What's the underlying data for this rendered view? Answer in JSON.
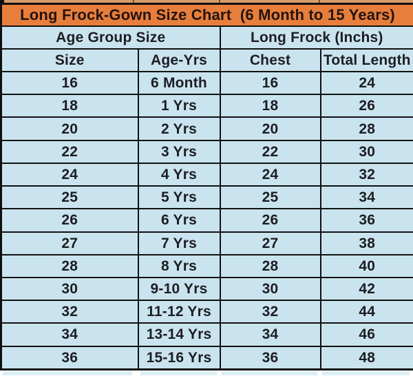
{
  "colors": {
    "header_orange": "#E77E3C",
    "cell_blue": "#CAE4EF",
    "border_dark": "#101010",
    "title_text": "#241411",
    "body_text": "#1D1D22",
    "top_strip_tan": "#D89B6C",
    "top_tick": "#7A5336",
    "bottom_strip_blue": "#DCEEF5"
  },
  "chart_data": {
    "type": "table",
    "title": "Long Frock-Gown Size Chart  (6 Month to 15 Years)",
    "column_groups": [
      {
        "label": "Age Group Size",
        "span": 2
      },
      {
        "label": "Long Frock (Inchs)",
        "span": 2
      }
    ],
    "columns": [
      "Size",
      "Age-Yrs",
      "Chest",
      "Total Length"
    ],
    "rows": [
      [
        "16",
        "6 Month",
        "16",
        "24"
      ],
      [
        "18",
        "1 Yrs",
        "18",
        "26"
      ],
      [
        "20",
        "2 Yrs",
        "20",
        "28"
      ],
      [
        "22",
        "3 Yrs",
        "22",
        "30"
      ],
      [
        "24",
        "4 Yrs",
        "24",
        "32"
      ],
      [
        "25",
        "5 Yrs",
        "25",
        "34"
      ],
      [
        "26",
        "6 Yrs",
        "26",
        "36"
      ],
      [
        "27",
        "7 Yrs",
        "27",
        "38"
      ],
      [
        "28",
        "8 Yrs",
        "28",
        "40"
      ],
      [
        "30",
        "9-10 Yrs",
        "30",
        "42"
      ],
      [
        "32",
        "11-12 Yrs",
        "32",
        "44"
      ],
      [
        "34",
        "13-14 Yrs",
        "34",
        "46"
      ],
      [
        "36",
        "15-16 Yrs",
        "36",
        "48"
      ]
    ]
  }
}
